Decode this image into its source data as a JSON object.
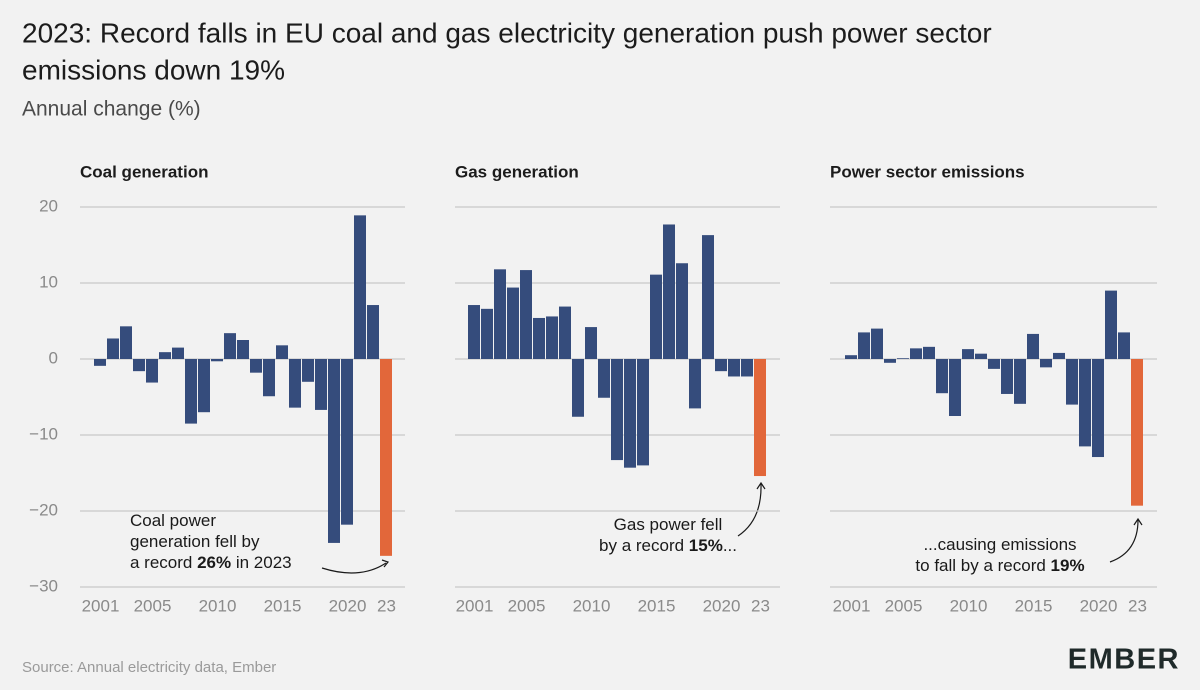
{
  "title": [
    "2023: Record falls in EU coal and gas electricity generation push power sector",
    "emissions down 19%"
  ],
  "subtitle": "Annual change (%)",
  "source": "Source: Annual electricity data, Ember",
  "logo": "EMBER",
  "chart_data": [
    {
      "type": "bar",
      "title": "Coal generation",
      "categories": [
        "2001",
        null,
        null,
        null,
        "2005",
        null,
        null,
        null,
        null,
        "2010",
        null,
        null,
        null,
        null,
        "2015",
        null,
        null,
        null,
        null,
        "2020",
        null,
        null,
        "23"
      ],
      "values": [
        -0.9,
        2.7,
        4.3,
        -1.6,
        -3.1,
        0.9,
        1.5,
        -8.5,
        -7.0,
        -0.3,
        3.4,
        2.5,
        -1.8,
        -4.9,
        1.8,
        -6.4,
        -3.0,
        -6.7,
        -24.2,
        -21.8,
        18.9,
        7.1,
        -25.9
      ],
      "colors": [
        "#354c7c",
        "#354c7c",
        "#354c7c",
        "#354c7c",
        "#354c7c",
        "#354c7c",
        "#354c7c",
        "#354c7c",
        "#354c7c",
        "#354c7c",
        "#354c7c",
        "#354c7c",
        "#354c7c",
        "#354c7c",
        "#354c7c",
        "#354c7c",
        "#354c7c",
        "#354c7c",
        "#354c7c",
        "#354c7c",
        "#354c7c",
        "#354c7c",
        "#e2673a"
      ],
      "ylim": [
        -30,
        20
      ],
      "yticks": [
        20,
        10,
        0,
        {
          "value": -10,
          "label": "−10"
        },
        {
          "value": -20,
          "label": "−20"
        },
        {
          "value": -30,
          "label": "−30"
        }
      ],
      "ytick_labels": true,
      "grid": true,
      "annotation": [
        [
          {
            "text": "Coal power"
          }
        ],
        [
          {
            "text": "generation fell by"
          }
        ],
        [
          {
            "text": "a record "
          },
          {
            "text": "26%",
            "bold": true
          },
          {
            "text": " in 2023"
          }
        ]
      ]
    },
    {
      "type": "bar",
      "title": "Gas generation",
      "categories": [
        "2001",
        null,
        null,
        null,
        "2005",
        null,
        null,
        null,
        null,
        "2010",
        null,
        null,
        null,
        null,
        "2015",
        null,
        null,
        null,
        null,
        "2020",
        null,
        null,
        "23"
      ],
      "values": [
        7.1,
        6.6,
        11.8,
        9.4,
        11.7,
        5.4,
        5.6,
        6.9,
        -7.6,
        4.2,
        -5.1,
        -13.3,
        -14.3,
        -14.0,
        11.1,
        17.7,
        12.6,
        -6.5,
        16.3,
        -1.6,
        -2.3,
        -2.3,
        -15.4
      ],
      "colors": [
        "#354c7c",
        "#354c7c",
        "#354c7c",
        "#354c7c",
        "#354c7c",
        "#354c7c",
        "#354c7c",
        "#354c7c",
        "#354c7c",
        "#354c7c",
        "#354c7c",
        "#354c7c",
        "#354c7c",
        "#354c7c",
        "#354c7c",
        "#354c7c",
        "#354c7c",
        "#354c7c",
        "#354c7c",
        "#354c7c",
        "#354c7c",
        "#354c7c",
        "#e2673a"
      ],
      "ylim": [
        -30,
        20
      ],
      "yticks": [
        20,
        10,
        0,
        -10,
        -20,
        -30
      ],
      "ytick_labels": false,
      "grid": true,
      "annotation": [
        [
          {
            "text": "Gas power fell"
          }
        ],
        [
          {
            "text": "by a record "
          },
          {
            "text": "15%",
            "bold": true
          },
          {
            "text": "..."
          }
        ]
      ]
    },
    {
      "type": "bar",
      "title": "Power sector emissions",
      "categories": [
        "2001",
        null,
        null,
        null,
        "2005",
        null,
        null,
        null,
        null,
        "2010",
        null,
        null,
        null,
        null,
        "2015",
        null,
        null,
        null,
        null,
        "2020",
        null,
        null,
        "23"
      ],
      "values": [
        0.5,
        3.5,
        4.0,
        -0.5,
        0.1,
        1.4,
        1.6,
        -4.5,
        -7.5,
        1.3,
        0.7,
        -1.3,
        -4.6,
        -5.9,
        3.3,
        -1.1,
        0.8,
        -6.0,
        -11.5,
        -12.9,
        9.0,
        3.5,
        -19.3
      ],
      "colors": [
        "#354c7c",
        "#354c7c",
        "#354c7c",
        "#354c7c",
        "#354c7c",
        "#354c7c",
        "#354c7c",
        "#354c7c",
        "#354c7c",
        "#354c7c",
        "#354c7c",
        "#354c7c",
        "#354c7c",
        "#354c7c",
        "#354c7c",
        "#354c7c",
        "#354c7c",
        "#354c7c",
        "#354c7c",
        "#354c7c",
        "#354c7c",
        "#354c7c",
        "#e2673a"
      ],
      "ylim": [
        -30,
        20
      ],
      "yticks": [
        20,
        10,
        0,
        -10,
        -20,
        -30
      ],
      "ytick_labels": false,
      "grid": true,
      "annotation": [
        [
          {
            "text": "...causing emissions"
          }
        ],
        [
          {
            "text": "to fall by a record "
          },
          {
            "text": "19%",
            "bold": true
          }
        ]
      ]
    }
  ]
}
